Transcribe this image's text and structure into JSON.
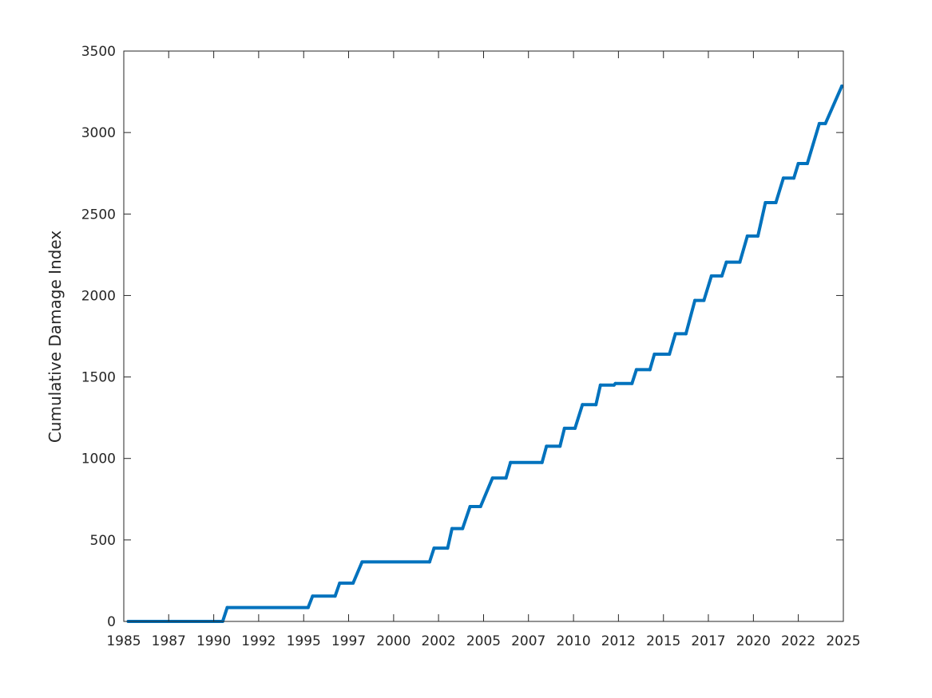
{
  "chart_data": {
    "type": "line",
    "title": "",
    "xlabel": "",
    "ylabel": "Cumulative Damage Index",
    "xlim": [
      "1985-01-01",
      "2025-01-01"
    ],
    "ylim": [
      0,
      3500
    ],
    "grid": false,
    "box": true,
    "colors": {
      "series": "#0072BD",
      "axes": "#262626",
      "background": "#ffffff"
    },
    "x_ticks": [
      "1985",
      "1987",
      "1990",
      "1992",
      "1995",
      "1997",
      "2000",
      "2002",
      "2005",
      "2007",
      "2010",
      "2012",
      "2015",
      "2017",
      "2020",
      "2022",
      "2025"
    ],
    "x_tick_dates": [
      "1985-01-01",
      "1987-07-01",
      "1990-01-01",
      "1992-07-01",
      "1995-01-01",
      "1997-07-01",
      "2000-01-01",
      "2002-07-01",
      "2005-01-01",
      "2007-07-01",
      "2010-01-01",
      "2012-07-01",
      "2015-01-01",
      "2017-07-01",
      "2020-01-01",
      "2022-07-01",
      "2025-01-01"
    ],
    "y_ticks": [
      "0",
      "500",
      "1000",
      "1500",
      "2000",
      "2500",
      "3000",
      "3500"
    ],
    "y_tick_values": [
      0,
      500,
      1000,
      1500,
      2000,
      2500,
      3000,
      3500
    ],
    "series": [
      {
        "x": [
          "1985-04-01",
          "1990-07-01",
          "1990-10-01",
          "1995-04-01",
          "1995-07-01",
          "1996-10-01",
          "1997-01-01",
          "1997-10-01",
          "1998-04-01",
          "2002-01-01",
          "2002-04-01",
          "2003-01-01",
          "2003-04-01",
          "2003-11-01",
          "2004-04-01",
          "2004-11-01",
          "2005-07-01",
          "2006-04-01",
          "2006-07-01",
          "2008-04-01",
          "2008-07-01",
          "2009-04-01",
          "2009-07-01",
          "2010-02-01",
          "2010-07-01",
          "2011-04-01",
          "2011-07-01",
          "2012-04-01",
          "2012-05-01",
          "2013-04-01",
          "2013-07-01",
          "2014-04-01",
          "2014-07-01",
          "2015-05-01",
          "2015-09-01",
          "2016-04-01",
          "2016-10-01",
          "2017-04-01",
          "2017-09-01",
          "2018-04-01",
          "2018-07-01",
          "2019-04-01",
          "2019-09-01",
          "2020-04-01",
          "2020-09-01",
          "2021-04-01",
          "2021-09-01",
          "2022-04-01",
          "2022-07-01",
          "2023-01-01",
          "2023-09-01",
          "2024-01-01",
          "2024-12-01"
        ],
        "y": [
          0,
          0,
          85,
          85,
          155,
          155,
          235,
          235,
          365,
          365,
          450,
          450,
          570,
          570,
          705,
          705,
          880,
          880,
          975,
          975,
          1075,
          1075,
          1185,
          1185,
          1330,
          1330,
          1450,
          1450,
          1460,
          1460,
          1545,
          1545,
          1640,
          1640,
          1765,
          1765,
          1970,
          1970,
          2120,
          2120,
          2205,
          2205,
          2365,
          2365,
          2570,
          2570,
          2720,
          2720,
          2810,
          2810,
          3055,
          3055,
          3285
        ]
      }
    ]
  }
}
